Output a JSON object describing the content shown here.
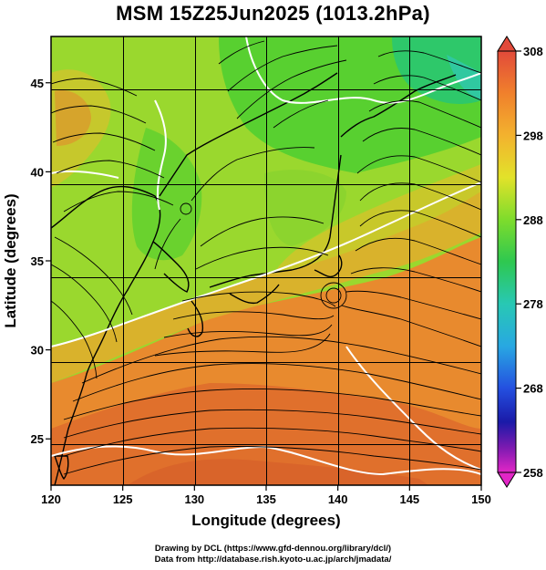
{
  "title": "MSM 15Z25Jun2025 (1013.2hPa)",
  "axes": {
    "xlabel": "Longitude (degrees)",
    "ylabel": "Latitude  (degrees)",
    "x_ticks": [
      "120",
      "125",
      "130",
      "135",
      "140",
      "145",
      "150"
    ],
    "y_ticks": [
      "25",
      "30",
      "35",
      "40",
      "45"
    ],
    "xlim": [
      120,
      150
    ],
    "ylim": [
      22.4,
      47.6
    ]
  },
  "colorbar": {
    "labels": [
      "308",
      "298",
      "288",
      "278",
      "268",
      "258"
    ],
    "range": [
      258,
      308
    ],
    "colors_top_to_bottom": [
      "#e65a3c",
      "#f08c32",
      "#f5c832",
      "#c8e628",
      "#50d732",
      "#28c878",
      "#28c8c8",
      "#28a0e6",
      "#2850e6",
      "#1e1eb4",
      "#8c1eb4",
      "#e628c8"
    ]
  },
  "map": {
    "field": "temperature (K) with wind streamlines",
    "low_pressure_center": {
      "lon": 139.6,
      "lat": 33.9
    },
    "other_vortex": {
      "lon": 129.5,
      "lat": 38.9
    }
  },
  "credits": {
    "line1": "Drawing by DCL (https://www.gfd-dennou.org/library/dcl/)",
    "line2": "Data from http://database.rish.kyoto-u.ac.jp/arch/jmadata/"
  }
}
